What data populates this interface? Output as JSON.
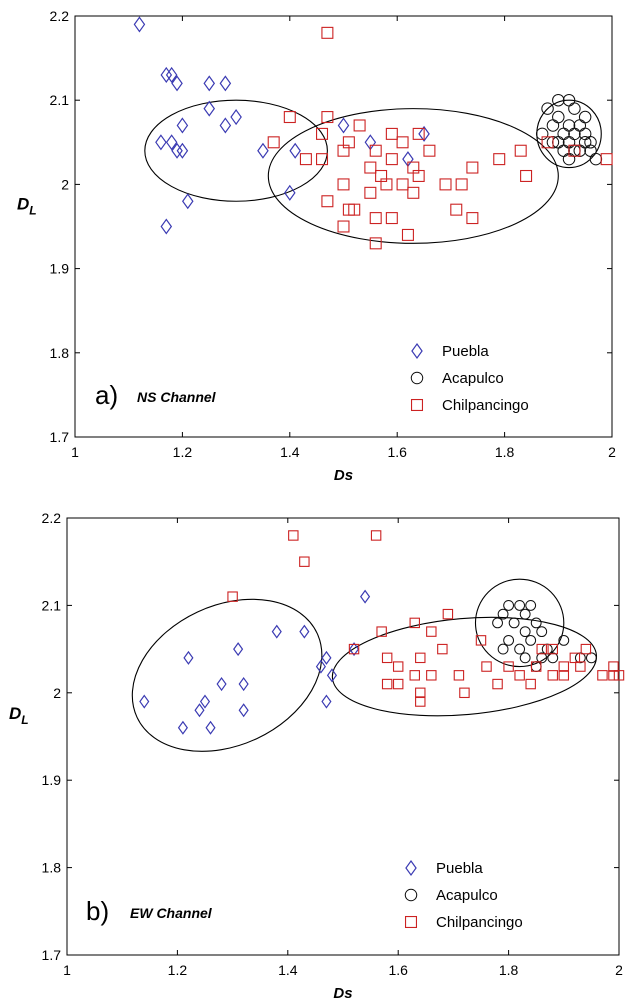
{
  "chart_data": [
    {
      "type": "scatter",
      "panel_label": "a)",
      "annotation": "NS Channel",
      "xlabel": "Ds",
      "ylabel": "D",
      "ylabel_sub": "L",
      "xlim": [
        1,
        2
      ],
      "ylim": [
        1.7,
        2.2
      ],
      "xticks": [
        "1",
        "1.2",
        "1.4",
        "1.6",
        "1.8",
        "2"
      ],
      "yticks": [
        "1.7",
        "1.8",
        "1.9",
        "2",
        "2.1",
        "2.2"
      ],
      "grid": false,
      "legend_position": "bottom-right",
      "series": [
        {
          "name": "Puebla",
          "marker": "diamond",
          "color": "#3b3bb3",
          "points": [
            [
              1.12,
              2.19
            ],
            [
              1.17,
              2.13
            ],
            [
              1.18,
              2.13
            ],
            [
              1.19,
              2.12
            ],
            [
              1.25,
              2.12
            ],
            [
              1.28,
              2.12
            ],
            [
              1.25,
              2.09
            ],
            [
              1.3,
              2.08
            ],
            [
              1.2,
              2.07
            ],
            [
              1.28,
              2.07
            ],
            [
              1.16,
              2.05
            ],
            [
              1.18,
              2.05
            ],
            [
              1.2,
              2.04
            ],
            [
              1.19,
              2.04
            ],
            [
              1.35,
              2.04
            ],
            [
              1.41,
              2.04
            ],
            [
              1.21,
              1.98
            ],
            [
              1.4,
              1.99
            ],
            [
              1.17,
              1.95
            ],
            [
              1.5,
              2.07
            ],
            [
              1.55,
              2.05
            ],
            [
              1.65,
              2.06
            ],
            [
              1.62,
              2.03
            ]
          ]
        },
        {
          "name": "Acapulco",
          "marker": "circle",
          "color": "#111111",
          "points": [
            [
              1.9,
              2.1
            ],
            [
              1.92,
              2.1
            ],
            [
              1.93,
              2.09
            ],
            [
              1.88,
              2.09
            ],
            [
              1.95,
              2.08
            ],
            [
              1.9,
              2.08
            ],
            [
              1.92,
              2.07
            ],
            [
              1.89,
              2.07
            ],
            [
              1.94,
              2.07
            ],
            [
              1.91,
              2.06
            ],
            [
              1.93,
              2.06
            ],
            [
              1.92,
              2.05
            ],
            [
              1.9,
              2.05
            ],
            [
              1.95,
              2.06
            ],
            [
              1.96,
              2.05
            ],
            [
              1.93,
              2.04
            ],
            [
              1.91,
              2.04
            ],
            [
              1.94,
              2.04
            ],
            [
              1.96,
              2.04
            ],
            [
              1.97,
              2.03
            ],
            [
              1.92,
              2.03
            ],
            [
              1.89,
              2.05
            ],
            [
              1.87,
              2.06
            ],
            [
              1.95,
              2.05
            ]
          ]
        },
        {
          "name": "Chilpancingo",
          "marker": "square",
          "color": "#cc2222",
          "points": [
            [
              1.47,
              2.18
            ],
            [
              1.4,
              2.08
            ],
            [
              1.47,
              2.08
            ],
            [
              1.53,
              2.07
            ],
            [
              1.46,
              2.06
            ],
            [
              1.51,
              2.05
            ],
            [
              1.59,
              2.06
            ],
            [
              1.64,
              2.06
            ],
            [
              1.5,
              2.04
            ],
            [
              1.56,
              2.04
            ],
            [
              1.61,
              2.05
            ],
            [
              1.66,
              2.04
            ],
            [
              1.37,
              2.05
            ],
            [
              1.43,
              2.03
            ],
            [
              1.46,
              2.03
            ],
            [
              1.55,
              2.02
            ],
            [
              1.59,
              2.03
            ],
            [
              1.63,
              2.02
            ],
            [
              1.57,
              2.01
            ],
            [
              1.64,
              2.01
            ],
            [
              1.5,
              2.0
            ],
            [
              1.58,
              2.0
            ],
            [
              1.61,
              2.0
            ],
            [
              1.69,
              2.0
            ],
            [
              1.72,
              2.0
            ],
            [
              1.74,
              2.02
            ],
            [
              1.79,
              2.03
            ],
            [
              1.83,
              2.04
            ],
            [
              1.84,
              2.01
            ],
            [
              1.55,
              1.99
            ],
            [
              1.63,
              1.99
            ],
            [
              1.47,
              1.98
            ],
            [
              1.51,
              1.97
            ],
            [
              1.52,
              1.97
            ],
            [
              1.59,
              1.96
            ],
            [
              1.71,
              1.97
            ],
            [
              1.74,
              1.96
            ],
            [
              1.56,
              1.96
            ],
            [
              1.5,
              1.95
            ],
            [
              1.56,
              1.93
            ],
            [
              1.62,
              1.94
            ],
            [
              1.88,
              2.05
            ],
            [
              1.93,
              2.04
            ],
            [
              1.99,
              2.03
            ]
          ]
        }
      ],
      "ellipses": [
        {
          "center": [
            1.3,
            2.04
          ],
          "rx": 0.17,
          "ry": 0.06
        },
        {
          "center": [
            1.63,
            2.01
          ],
          "rx": 0.27,
          "ry": 0.08
        },
        {
          "center": [
            1.92,
            2.06
          ],
          "rx": 0.06,
          "ry": 0.04
        }
      ]
    },
    {
      "type": "scatter",
      "panel_label": "b)",
      "annotation": "EW Channel",
      "xlabel": "Ds",
      "ylabel": "D",
      "ylabel_sub": "L",
      "xlim": [
        1,
        2
      ],
      "ylim": [
        1.7,
        2.2
      ],
      "xticks": [
        "1",
        "1.2",
        "1.4",
        "1.6",
        "1.8",
        "2"
      ],
      "yticks": [
        "1.7",
        "1.8",
        "1.9",
        "2",
        "2.1",
        "2.2"
      ],
      "grid": false,
      "legend_position": "bottom-right",
      "series": [
        {
          "name": "Puebla",
          "marker": "diamond",
          "color": "#3b3bb3",
          "points": [
            [
              1.14,
              1.99
            ],
            [
              1.21,
              1.96
            ],
            [
              1.22,
              2.04
            ],
            [
              1.24,
              1.98
            ],
            [
              1.25,
              1.99
            ],
            [
              1.26,
              1.96
            ],
            [
              1.28,
              2.01
            ],
            [
              1.31,
              2.05
            ],
            [
              1.32,
              2.01
            ],
            [
              1.32,
              1.98
            ],
            [
              1.38,
              2.07
            ],
            [
              1.43,
              2.07
            ],
            [
              1.46,
              2.03
            ],
            [
              1.47,
              2.04
            ],
            [
              1.48,
              2.02
            ],
            [
              1.47,
              1.99
            ],
            [
              1.52,
              2.05
            ],
            [
              1.54,
              2.11
            ]
          ]
        },
        {
          "name": "Acapulco",
          "marker": "circle",
          "color": "#111111",
          "points": [
            [
              1.8,
              2.1
            ],
            [
              1.82,
              2.1
            ],
            [
              1.84,
              2.1
            ],
            [
              1.79,
              2.09
            ],
            [
              1.83,
              2.09
            ],
            [
              1.81,
              2.08
            ],
            [
              1.85,
              2.08
            ],
            [
              1.78,
              2.08
            ],
            [
              1.83,
              2.07
            ],
            [
              1.86,
              2.07
            ],
            [
              1.8,
              2.06
            ],
            [
              1.84,
              2.06
            ],
            [
              1.82,
              2.05
            ],
            [
              1.87,
              2.05
            ],
            [
              1.79,
              2.05
            ],
            [
              1.83,
              2.04
            ],
            [
              1.86,
              2.04
            ],
            [
              1.88,
              2.04
            ],
            [
              1.85,
              2.03
            ],
            [
              1.9,
              2.06
            ],
            [
              1.93,
              2.04
            ],
            [
              1.95,
              2.04
            ]
          ]
        },
        {
          "name": "Chilpancingo",
          "marker": "square",
          "color": "#cc2222",
          "points": [
            [
              1.41,
              2.18
            ],
            [
              1.43,
              2.15
            ],
            [
              1.56,
              2.18
            ],
            [
              1.3,
              2.11
            ],
            [
              1.63,
              2.08
            ],
            [
              1.69,
              2.09
            ],
            [
              1.57,
              2.07
            ],
            [
              1.66,
              2.07
            ],
            [
              1.52,
              2.05
            ],
            [
              1.58,
              2.04
            ],
            [
              1.64,
              2.04
            ],
            [
              1.68,
              2.05
            ],
            [
              1.75,
              2.06
            ],
            [
              1.6,
              2.03
            ],
            [
              1.63,
              2.02
            ],
            [
              1.66,
              2.02
            ],
            [
              1.71,
              2.02
            ],
            [
              1.76,
              2.03
            ],
            [
              1.8,
              2.03
            ],
            [
              1.85,
              2.03
            ],
            [
              1.9,
              2.03
            ],
            [
              1.93,
              2.03
            ],
            [
              1.58,
              2.01
            ],
            [
              1.64,
              2.0
            ],
            [
              1.72,
              2.0
            ],
            [
              1.78,
              2.01
            ],
            [
              1.84,
              2.01
            ],
            [
              1.88,
              2.02
            ],
            [
              1.9,
              2.02
            ],
            [
              1.92,
              2.04
            ],
            [
              1.94,
              2.05
            ],
            [
              1.97,
              2.02
            ],
            [
              1.99,
              2.03
            ],
            [
              2.0,
              2.02
            ],
            [
              1.99,
              2.02
            ],
            [
              1.64,
              1.99
            ],
            [
              1.6,
              2.01
            ],
            [
              1.82,
              2.02
            ],
            [
              1.88,
              2.05
            ],
            [
              1.86,
              2.05
            ]
          ]
        }
      ],
      "ellipses": [
        {
          "center": [
            1.29,
            2.02
          ],
          "rx": 0.18,
          "ry": 0.08,
          "rotate": -25
        },
        {
          "center": [
            1.72,
            2.03
          ],
          "rx": 0.24,
          "ry": 0.055,
          "rotate": -5
        },
        {
          "center": [
            1.82,
            2.08
          ],
          "rx": 0.08,
          "ry": 0.05
        }
      ]
    }
  ]
}
